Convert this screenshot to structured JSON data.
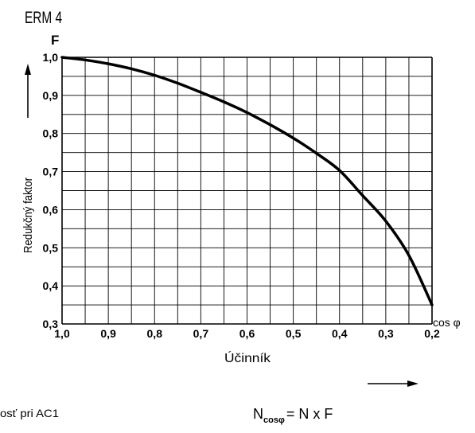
{
  "chart_data": {
    "type": "line",
    "title": "ERM 4",
    "ylabel": "Redukčný faktor",
    "y_symbol": "F",
    "xlabel": "Účinník",
    "x_symbol": "cos φ",
    "x_reversed": true,
    "xlim": [
      1.0,
      0.2
    ],
    "ylim": [
      0.3,
      1.0
    ],
    "grid": true,
    "x_ticks": [
      "1,0",
      "0,9",
      "0,8",
      "0,7",
      "0,6",
      "0,5",
      "0,4",
      "0,3",
      "0,2"
    ],
    "y_ticks": [
      "0,3",
      "0,4",
      "0,5",
      "0,6",
      "0,7",
      "0,8",
      "0,9",
      "1,0"
    ],
    "series": [
      {
        "x": [
          1.0,
          0.95,
          0.9,
          0.85,
          0.8,
          0.75,
          0.7,
          0.65,
          0.6,
          0.55,
          0.5,
          0.45,
          0.4,
          0.35,
          0.3,
          0.25,
          0.2
        ],
        "y": [
          1.0,
          0.993,
          0.983,
          0.97,
          0.953,
          0.932,
          0.908,
          0.883,
          0.855,
          0.823,
          0.788,
          0.748,
          0.703,
          0.637,
          0.57,
          0.48,
          0.35
        ]
      }
    ]
  },
  "footnote_left": "osť pri AC1",
  "formula": {
    "lhs": "N",
    "lhs_sub": "cosφ",
    "rhs": "= N x F"
  }
}
